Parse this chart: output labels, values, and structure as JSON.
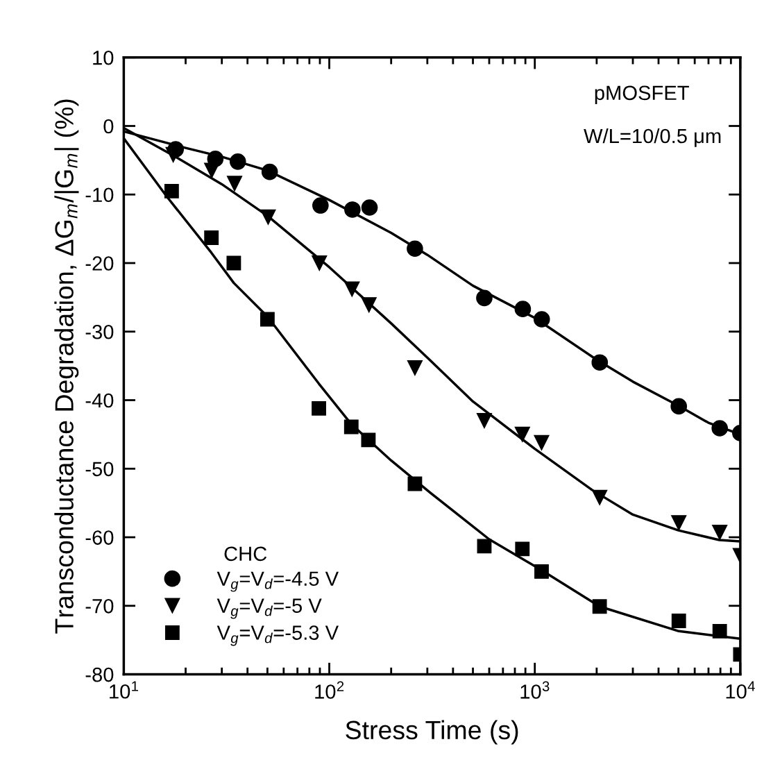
{
  "chart_data": {
    "type": "scatter",
    "xlabel": "Stress Time (s)",
    "ylabel": "Transconductance Degradation, ΔG$_{m}$/|G$_{m}$| (%)",
    "log": "x",
    "xlim": [
      10,
      10000
    ],
    "ylim": [
      -80,
      10
    ],
    "xticks": [
      {
        "value": 10,
        "label": "10$^{1}$"
      },
      {
        "value": 100,
        "label": "10$^{2}$"
      },
      {
        "value": 1000,
        "label": "10$^{3}$"
      },
      {
        "value": 10000,
        "label": "10$^{4}$"
      }
    ],
    "yticks": [
      -80,
      -70,
      -60,
      -50,
      -40,
      -30,
      -20,
      -10,
      0,
      10
    ],
    "grid": false,
    "legend": "bottom left",
    "legend_title": "CHC",
    "annotations": [
      "pMOSFET",
      "W/L=10/0.5 μm"
    ],
    "series": [
      {
        "name": "V$_{g}$=V$_{d}$=-4.5 V",
        "marker": "circle",
        "color": "#000000",
        "x": [
          17.9,
          27.9,
          35.9,
          51.3,
          90.6,
          129.6,
          157,
          261,
          568,
          874,
          1081,
          2070,
          5020,
          7940,
          10000
        ],
        "values": [
          -3.4,
          -4.8,
          -5.2,
          -6.7,
          -11.6,
          -12.2,
          -11.9,
          -17.9,
          -25.1,
          -26.7,
          -28.2,
          -34.5,
          -40.9,
          -44.1,
          -44.8
        ]
      },
      {
        "name": "V$_{g}$=V$_{d}$=-5 V",
        "marker": "triangle",
        "color": "#000000",
        "x": [
          17.4,
          26.8,
          34.6,
          50.4,
          89.5,
          129,
          156,
          261,
          568,
          870,
          1079,
          2068,
          5020,
          7940,
          10000
        ],
        "values": [
          -4.2,
          -6.5,
          -8.4,
          -13.3,
          -20.0,
          -23.8,
          -26.1,
          -35.3,
          -43.0,
          -45.0,
          -46.2,
          -54.2,
          -57.9,
          -59.3,
          -62.7
        ]
      },
      {
        "name": "V$_{g}$=V$_{d}$=-5.3 V",
        "marker": "square",
        "color": "#000000",
        "x": [
          17.1,
          26.7,
          34.3,
          50,
          89,
          128,
          155,
          261,
          568,
          870,
          1079,
          2068,
          5020,
          7940,
          10000
        ],
        "values": [
          -9.5,
          -16.3,
          -20.0,
          -28.2,
          -41.2,
          -43.9,
          -45.8,
          -52.2,
          -61.3,
          -61.7,
          -65.0,
          -70.1,
          -72.2,
          -73.7,
          -77.1
        ]
      },
      {
        "type": "line",
        "line_style": "solid",
        "marker": "none",
        "color": "#000000",
        "x": [
          10,
          20,
          30,
          50,
          100,
          200,
          300,
          500,
          1000,
          2000,
          3000,
          5000,
          7000,
          10000
        ],
        "values": [
          -0.8,
          -3.2,
          -4.5,
          -6.5,
          -10.8,
          -15.6,
          -18.8,
          -23.3,
          -28.0,
          -34.1,
          -37.3,
          -40.8,
          -43.3,
          -45.0
        ]
      },
      {
        "type": "line",
        "line_style": "solid",
        "marker": "none",
        "color": "#000000",
        "x": [
          10,
          17.4,
          30,
          50,
          100,
          200,
          310,
          500,
          1000,
          1900,
          3000,
          5000,
          7900,
          10000
        ],
        "values": [
          -0.3,
          -4.3,
          -8.5,
          -13.1,
          -20.6,
          -28.8,
          -34.2,
          -40.2,
          -47.1,
          -53.1,
          -56.7,
          -59.0,
          -60.4,
          -60.6
        ]
      },
      {
        "type": "line",
        "line_style": "solid",
        "marker": "none",
        "color": "#000000",
        "x": [
          10,
          16.2,
          26.7,
          34.3,
          50,
          89,
          128,
          200,
          310,
          600,
          1079,
          2068,
          5020,
          10000
        ],
        "values": [
          -1.8,
          -10.3,
          -18.5,
          -22.9,
          -27.8,
          -37.6,
          -43.5,
          -48.8,
          -53.5,
          -60.3,
          -64.8,
          -70.1,
          -73.7,
          -74.8
        ]
      }
    ]
  }
}
